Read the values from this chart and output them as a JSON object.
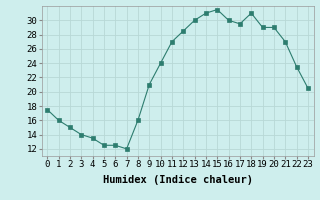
{
  "x": [
    0,
    1,
    2,
    3,
    4,
    5,
    6,
    7,
    8,
    9,
    10,
    11,
    12,
    13,
    14,
    15,
    16,
    17,
    18,
    19,
    20,
    21,
    22,
    23
  ],
  "y": [
    17.5,
    16,
    15,
    14,
    13.5,
    12.5,
    12.5,
    12,
    16,
    21,
    24,
    27,
    28.5,
    30,
    31,
    31.5,
    30,
    29.5,
    31,
    29,
    29,
    27,
    23.5,
    20.5
  ],
  "line_color": "#2d7d6f",
  "marker": "s",
  "marker_size": 2.5,
  "xlabel": "Humidex (Indice chaleur)",
  "ylabel_ticks": [
    12,
    14,
    16,
    18,
    20,
    22,
    24,
    26,
    28,
    30
  ],
  "ylim": [
    11,
    32
  ],
  "xlim": [
    -0.5,
    23.5
  ],
  "bg_color": "#ceeeed",
  "grid_color": "#b8d8d6",
  "axis_label_fontsize": 7.5,
  "tick_fontsize": 6.5
}
